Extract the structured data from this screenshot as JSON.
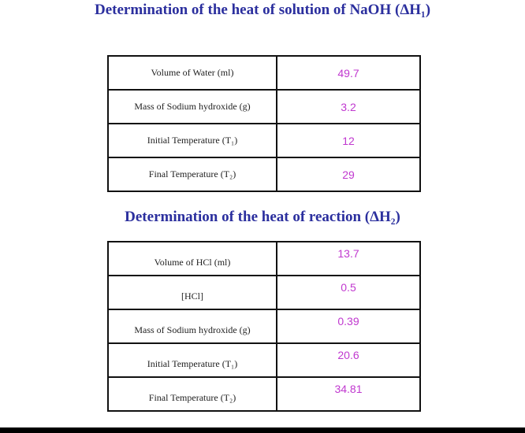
{
  "sections": [
    {
      "title": "Determination of the heat of solution of NaOH (ΔH₁)",
      "table": {
        "rows": [
          [
            "Volume of Water (ml)",
            49.7
          ],
          [
            "Mass of Sodium hydroxide (g)",
            3.2
          ],
          [
            "Initial Temperature (T₁)",
            12
          ],
          [
            "Final Temperature (T₂)",
            29
          ]
        ]
      }
    },
    {
      "title": "Determination of the heat of reaction (ΔH₂)",
      "table": {
        "rows": [
          [
            "Volume of  HCl (ml)",
            13.7
          ],
          [
            "[HCl]",
            0.5
          ],
          [
            "Mass of Sodium hydroxide (g)",
            0.39
          ],
          [
            "Initial Temperature (T₁)",
            20.6
          ],
          [
            "Final Temperature (T₂)",
            34.81
          ]
        ]
      }
    }
  ]
}
